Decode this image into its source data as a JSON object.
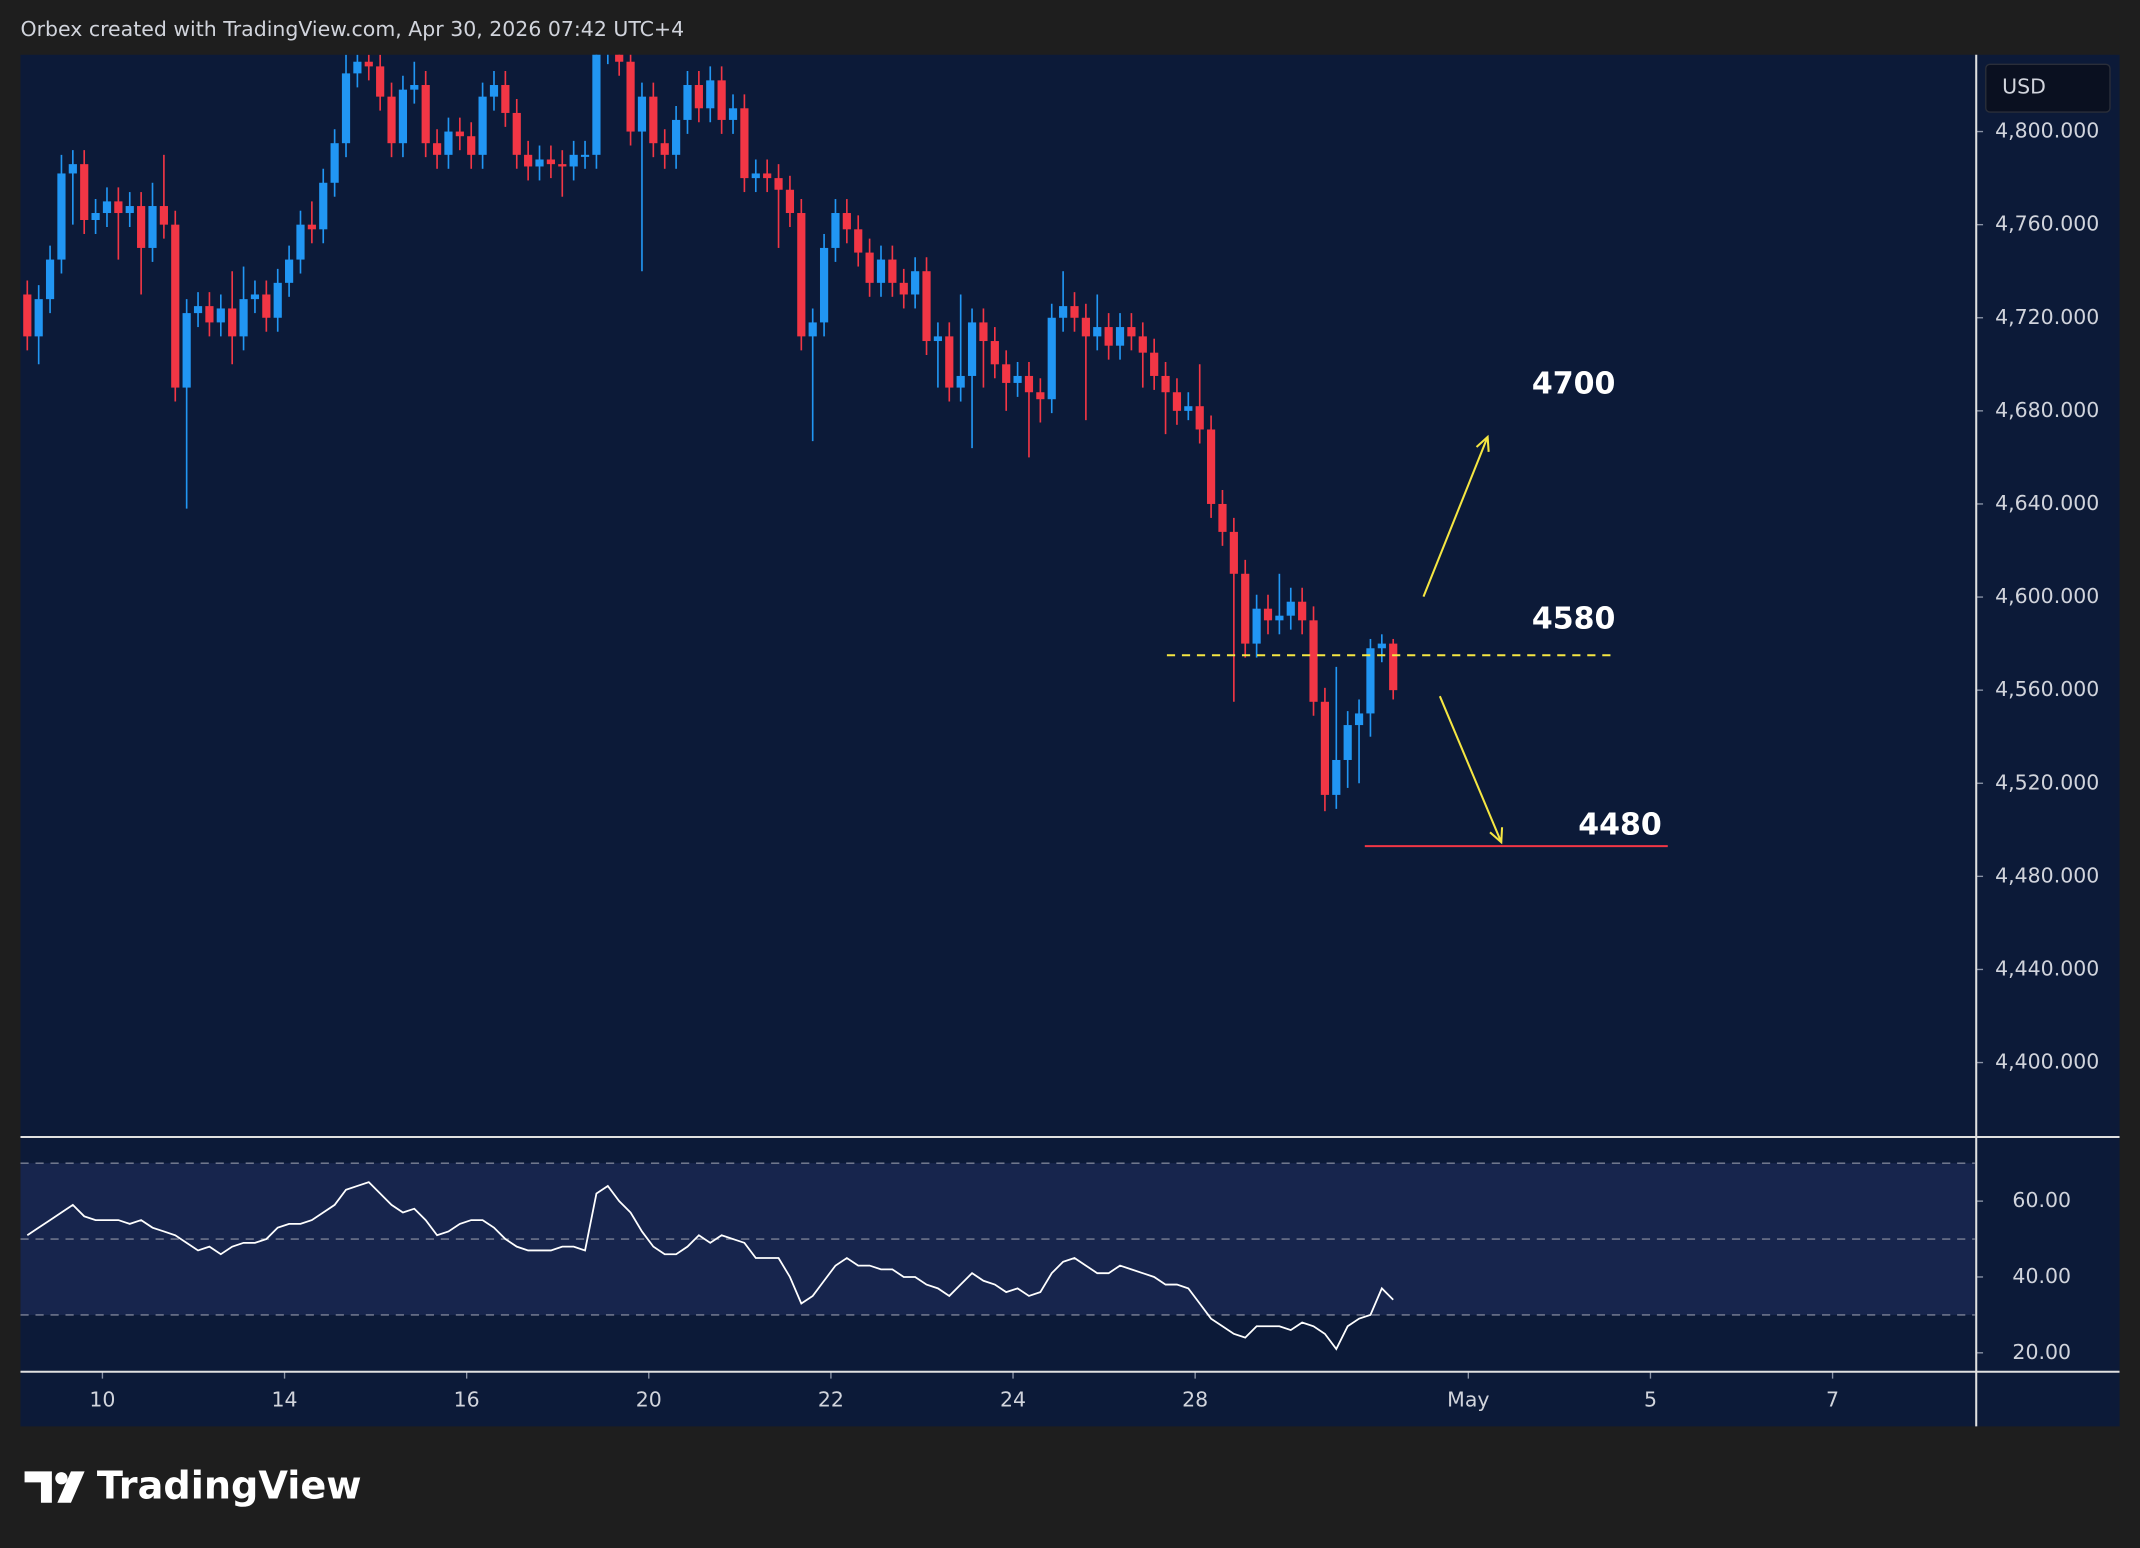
{
  "header": "Orbex created with TradingView.com, Apr 30, 2026 07:42 UTC+4",
  "logo": "TradingView",
  "chart_data": [
    {
      "type": "candlestick",
      "currency": "USD",
      "up_color": "#2196f3",
      "down_color": "#f23645",
      "open": [
        4730,
        4712,
        4728,
        4745,
        4782,
        4786,
        4762,
        4765,
        4770,
        4765,
        4768,
        4750,
        4768,
        4760,
        4690,
        4722,
        4725,
        4718,
        4724,
        4712,
        4728,
        4730,
        4720,
        4735,
        4745,
        4760,
        4758,
        4778,
        4795,
        4825,
        4830,
        4828,
        4815,
        4795,
        4818,
        4820,
        4795,
        4790,
        4800,
        4798,
        4790,
        4815,
        4820,
        4808,
        4790,
        4785,
        4788,
        4786,
        4785,
        4790,
        4790,
        4835,
        4838,
        4830,
        4800,
        4815,
        4795,
        4790,
        4805,
        4820,
        4810,
        4822,
        4805,
        4810,
        4780,
        4782,
        4780,
        4775,
        4765,
        4712,
        4718,
        4750,
        4765,
        4758,
        4748,
        4735,
        4745,
        4735,
        4730,
        4740,
        4710,
        4712,
        4690,
        4695,
        4718,
        4710,
        4700,
        4692,
        4695,
        4688,
        4685,
        4720,
        4725,
        4720,
        4712,
        4716,
        4708,
        4716,
        4712,
        4705,
        4695,
        4688,
        4680,
        4682,
        4672,
        4640,
        4628,
        4610,
        4580,
        4595,
        4590,
        4592,
        4598,
        4590,
        4555,
        4515,
        4530,
        4545,
        4550,
        4578,
        4580
      ],
      "high": [
        4736,
        4734,
        4751,
        4790,
        4792,
        4792,
        4771,
        4776,
        4776,
        4774,
        4774,
        4778,
        4790,
        4766,
        4728,
        4731,
        4731,
        4730,
        4740,
        4742,
        4736,
        4736,
        4741,
        4751,
        4766,
        4770,
        4784,
        4801,
        4833,
        4833,
        4833,
        4833,
        4821,
        4824,
        4830,
        4826,
        4801,
        4806,
        4806,
        4804,
        4821,
        4826,
        4826,
        4814,
        4796,
        4794,
        4794,
        4792,
        4796,
        4796,
        4845,
        4845,
        4845,
        4836,
        4821,
        4821,
        4801,
        4811,
        4826,
        4826,
        4828,
        4828,
        4816,
        4816,
        4788,
        4788,
        4786,
        4781,
        4771,
        4724,
        4756,
        4771,
        4771,
        4764,
        4754,
        4751,
        4751,
        4741,
        4746,
        4746,
        4718,
        4718,
        4730,
        4724,
        4724,
        4716,
        4706,
        4701,
        4701,
        4694,
        4726,
        4740,
        4731,
        4726,
        4730,
        4722,
        4722,
        4722,
        4718,
        4711,
        4701,
        4694,
        4688,
        4700,
        4678,
        4646,
        4634,
        4616,
        4601,
        4601,
        4610,
        4604,
        4604,
        4596,
        4561,
        4570,
        4551,
        4556,
        4582,
        4584,
        4582
      ],
      "low": [
        4706,
        4700,
        4722,
        4739,
        4760,
        4756,
        4756,
        4759,
        4745,
        4759,
        4730,
        4744,
        4754,
        4684,
        4638,
        4716,
        4712,
        4712,
        4700,
        4706,
        4722,
        4714,
        4714,
        4729,
        4739,
        4752,
        4752,
        4772,
        4789,
        4819,
        4822,
        4809,
        4789,
        4789,
        4812,
        4789,
        4784,
        4784,
        4792,
        4784,
        4784,
        4809,
        4802,
        4784,
        4779,
        4779,
        4780,
        4772,
        4779,
        4784,
        4784,
        4829,
        4824,
        4794,
        4740,
        4789,
        4784,
        4784,
        4799,
        4804,
        4804,
        4799,
        4799,
        4774,
        4774,
        4774,
        4750,
        4759,
        4706,
        4667,
        4712,
        4744,
        4752,
        4742,
        4729,
        4729,
        4729,
        4724,
        4724,
        4704,
        4690,
        4684,
        4684,
        4664,
        4690,
        4694,
        4680,
        4686,
        4660,
        4675,
        4679,
        4714,
        4714,
        4676,
        4706,
        4702,
        4702,
        4706,
        4690,
        4689,
        4670,
        4674,
        4676,
        4666,
        4634,
        4622,
        4555,
        4574,
        4574,
        4584,
        4584,
        4586,
        4584,
        4549,
        4508,
        4509,
        4518,
        4520,
        4540,
        4572,
        4556
      ],
      "close": [
        4712,
        4728,
        4745,
        4782,
        4786,
        4762,
        4765,
        4770,
        4765,
        4768,
        4750,
        4768,
        4760,
        4690,
        4722,
        4725,
        4718,
        4724,
        4712,
        4728,
        4730,
        4720,
        4735,
        4745,
        4760,
        4758,
        4778,
        4795,
        4825,
        4830,
        4828,
        4815,
        4795,
        4818,
        4820,
        4795,
        4790,
        4800,
        4798,
        4790,
        4815,
        4820,
        4808,
        4790,
        4785,
        4788,
        4786,
        4785,
        4790,
        4790,
        4835,
        4838,
        4830,
        4800,
        4815,
        4795,
        4790,
        4805,
        4820,
        4810,
        4822,
        4805,
        4810,
        4780,
        4782,
        4780,
        4775,
        4765,
        4712,
        4718,
        4750,
        4765,
        4758,
        4748,
        4735,
        4745,
        4735,
        4730,
        4740,
        4710,
        4712,
        4690,
        4695,
        4718,
        4710,
        4700,
        4692,
        4695,
        4688,
        4685,
        4720,
        4725,
        4720,
        4712,
        4716,
        4708,
        4716,
        4712,
        4705,
        4695,
        4688,
        4680,
        4682,
        4672,
        4640,
        4628,
        4610,
        4580,
        4595,
        4590,
        4592,
        4598,
        4590,
        4555,
        4515,
        4530,
        4545,
        4550,
        4578,
        4580,
        4560
      ],
      "xlim": [
        -0.6,
        171.1
      ],
      "ylim": [
        4368,
        4833
      ],
      "yticks": [
        {
          "value": 4400,
          "label": "4,400.000"
        },
        {
          "value": 4440,
          "label": "4,440.000"
        },
        {
          "value": 4480,
          "label": "4,480.000"
        },
        {
          "value": 4520,
          "label": "4,520.000"
        },
        {
          "value": 4560,
          "label": "4,560.000"
        },
        {
          "value": 4600,
          "label": "4,600.000"
        },
        {
          "value": 4640,
          "label": "4,640.000"
        },
        {
          "value": 4680,
          "label": "4,680.000"
        },
        {
          "value": 4720,
          "label": "4,720.000"
        },
        {
          "value": 4760,
          "label": "4,760.000"
        },
        {
          "value": 4800,
          "label": "4,800.000"
        }
      ],
      "xticks": [
        {
          "value": 6.6,
          "label": "10"
        },
        {
          "value": 22.6,
          "label": "14"
        },
        {
          "value": 38.6,
          "label": "16"
        },
        {
          "value": 54.6,
          "label": "20"
        },
        {
          "value": 70.6,
          "label": "22"
        },
        {
          "value": 86.6,
          "label": "24"
        },
        {
          "value": 102.6,
          "label": "28"
        },
        {
          "value": 126.6,
          "label": "May"
        },
        {
          "value": 142.6,
          "label": "5"
        },
        {
          "value": 158.6,
          "label": "7"
        }
      ],
      "grid": false,
      "levels": [
        {
          "value": 4575,
          "color": "#f5e642",
          "style": "dashed"
        },
        {
          "value": 4493,
          "color": "#f23645",
          "style": "solid"
        }
      ],
      "annotations": [
        "4700",
        "4580",
        "4480"
      ]
    },
    {
      "type": "line",
      "color": "#ffffff",
      "values": [
        51,
        53,
        55,
        57,
        59,
        56,
        55,
        55,
        55,
        54,
        55,
        53,
        52,
        51,
        49,
        47,
        48,
        46,
        48,
        49,
        49,
        50,
        53,
        54,
        54,
        55,
        57,
        59,
        63,
        64,
        65,
        62,
        59,
        57,
        58,
        55,
        51,
        52,
        54,
        55,
        55,
        53,
        50,
        48,
        47,
        47,
        47,
        48,
        48,
        47,
        62,
        64,
        60,
        57,
        52,
        48,
        46,
        46,
        48,
        51,
        49,
        51,
        50,
        49,
        45,
        45,
        45,
        40,
        33,
        35,
        39,
        43,
        45,
        43,
        43,
        42,
        42,
        40,
        40,
        38,
        37,
        35,
        38,
        41,
        39,
        38,
        36,
        37,
        35,
        36,
        41,
        44,
        45,
        43,
        41,
        41,
        43,
        42,
        41,
        40,
        38,
        38,
        37,
        33,
        29,
        27,
        25,
        24,
        27,
        27,
        27,
        26,
        28,
        27,
        25,
        21,
        27,
        29,
        30,
        37,
        34
      ],
      "ylim": [
        15,
        76.9
      ],
      "yticks": [
        {
          "value": 20,
          "label": "20.00"
        },
        {
          "value": 40,
          "label": "40.00"
        },
        {
          "value": 60,
          "label": "60.00"
        }
      ],
      "levels": [
        30,
        50,
        70
      ],
      "grid": false
    }
  ]
}
